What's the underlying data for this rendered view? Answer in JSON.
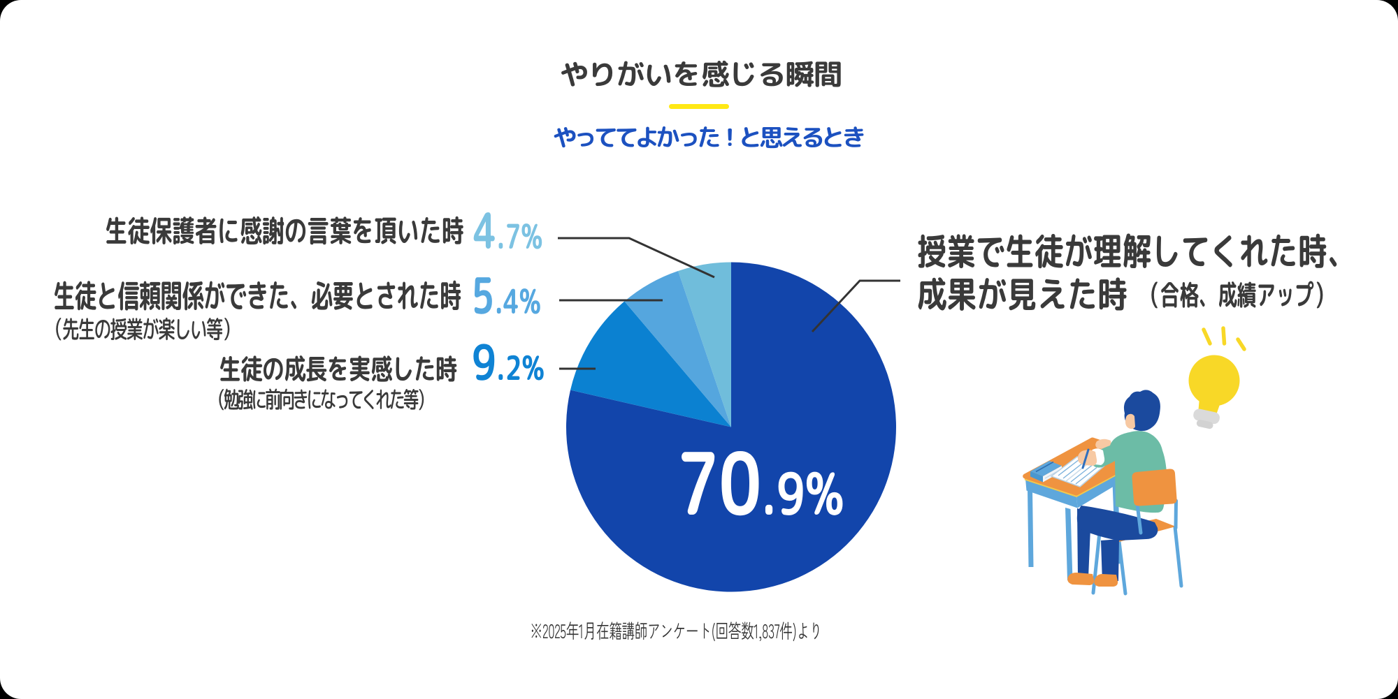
{
  "header": {
    "title": "やりがいを感じる瞬間",
    "subtitle": "やっててよかった！と思えるとき",
    "underline_color": "#FFE815"
  },
  "chart_data": {
    "type": "pie",
    "title": "やりがいを感じる瞬間",
    "subtitle": "やっててよかった！と思えるとき",
    "unit": "%",
    "start_angle_deg": 0,
    "direction": "clockwise",
    "angles_normalized_to_sum": true,
    "slices": [
      {
        "label": "授業で生徒が理解してくれた時、成果が見えた時（合格、成績アップ）",
        "value": 70.9,
        "value_label": "70.9%",
        "color": "#1245AB"
      },
      {
        "label": "生徒の成長を実感した時（勉強に前向きになってくれた等）",
        "value": 9.2,
        "value_label": "9.2%",
        "color": "#0B81D1"
      },
      {
        "label": "生徒と信頼関係ができた、必要とされた時（先生の授業が楽しい等）",
        "value": 5.4,
        "value_label": "5.4%",
        "color": "#55A6DE"
      },
      {
        "label": "生徒保護者に感謝の言葉を頂いた時",
        "value": 4.7,
        "value_label": "4.7%",
        "color": "#70BDDB"
      }
    ]
  },
  "left_labels": [
    {
      "text": "生徒保護者に感謝の言葉を頂いた時",
      "note": "",
      "value_big": "4",
      "value_small": ".7%",
      "value_label": "4.7%",
      "value_color": "#7CC2E2"
    },
    {
      "text": "生徒と信頼関係ができた、必要とされた時",
      "note": "（先生の授業が楽しい等）",
      "value_big": "5",
      "value_small": ".4%",
      "value_label": "5.4%",
      "value_color": "#56A8E0"
    },
    {
      "text": "生徒の成長を実感した時",
      "note": "（勉強に前向きになってくれた等）",
      "value_big": "9",
      "value_small": ".2%",
      "value_label": "9.2%",
      "value_color": "#0F83D4"
    }
  ],
  "main_slice_label": {
    "line1": "授業で生徒が理解してくれた時、",
    "line2": "成果が見えた時",
    "note": "（合格、成績アップ）",
    "center_value_big": "70",
    "center_value_small": ".9%",
    "center_value_label": "70.9%"
  },
  "footnote": "※2025年1月在籍講師アンケート(回答数1,837件)より",
  "palette": {
    "pie_colors": [
      "#1245AB",
      "#0B81D1",
      "#55A6DE",
      "#70BDDB"
    ],
    "accent_yellow": "#FFE815",
    "text_dark": "#3A3A3A",
    "subtitle_blue": "#1C51C0",
    "leader_line": "#333333"
  }
}
